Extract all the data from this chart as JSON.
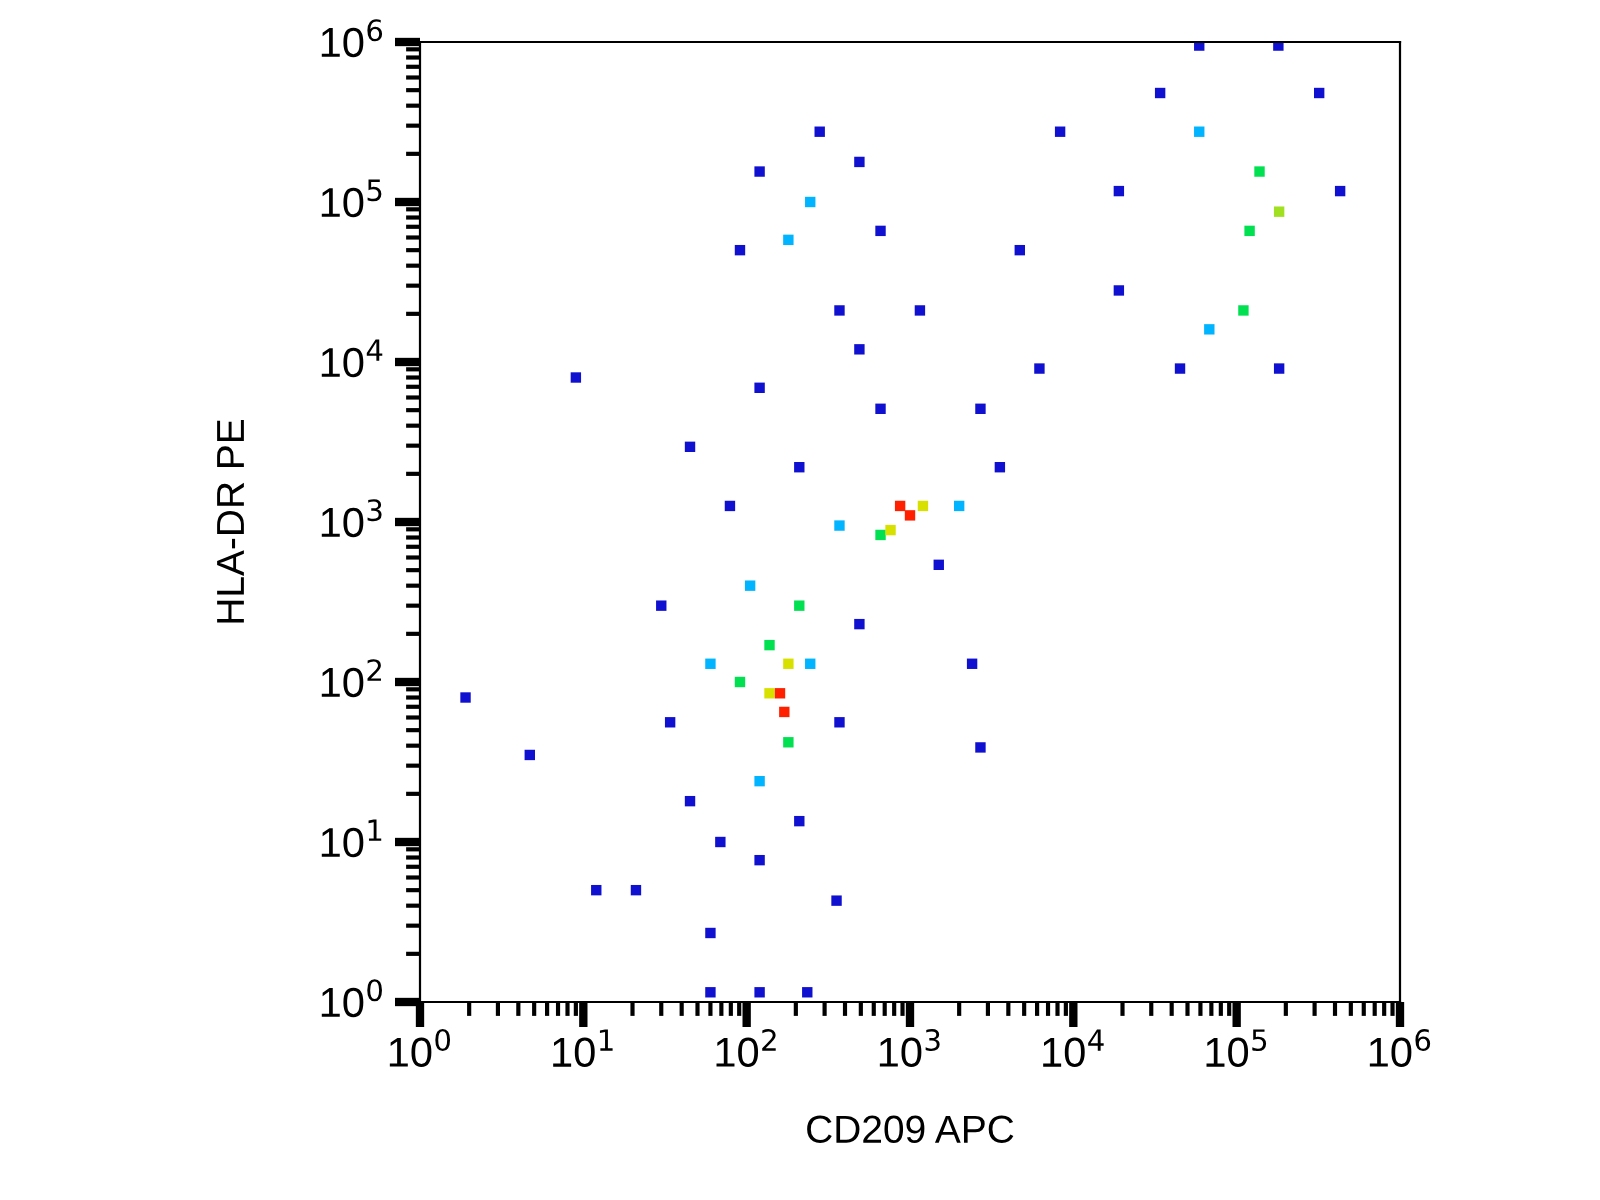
{
  "chart_data": {
    "type": "scatter",
    "xlabel": "CD209 APC",
    "ylabel": "HLA-DR PE",
    "log": "xy",
    "marker": "square",
    "grid": false,
    "xlim": [
      1,
      1000000
    ],
    "ylim": [
      1,
      1000000
    ],
    "xticks": [
      {
        "value": 1,
        "label": "10$^{0}$"
      },
      {
        "value": 10,
        "label": "10$^{1}$"
      },
      {
        "value": 100,
        "label": "10$^{2}$"
      },
      {
        "value": 1000,
        "label": "10$^{3}$"
      },
      {
        "value": 10000,
        "label": "10$^{4}$"
      },
      {
        "value": 100000,
        "label": "10$^{5}$"
      },
      {
        "value": 1000000,
        "label": "10$^{6}$"
      }
    ],
    "yticks": [
      {
        "value": 1,
        "label": "10$^{0}$"
      },
      {
        "value": 10,
        "label": "10$^{1}$"
      },
      {
        "value": 100,
        "label": "10$^{2}$"
      },
      {
        "value": 1000,
        "label": "10$^{3}$"
      },
      {
        "value": 10000,
        "label": "10$^{4}$"
      },
      {
        "value": 100000,
        "label": "10$^{5}$"
      },
      {
        "value": 1000000,
        "label": "10$^{6}$"
      }
    ],
    "x": [
      1.9,
      4.7,
      9,
      12,
      21,
      60,
      60,
      120,
      235,
      355,
      2400,
      2700,
      30,
      34,
      45,
      69,
      120,
      210,
      370,
      490,
      79,
      45,
      120,
      210,
      1500,
      3550,
      2700,
      660,
      6200,
      1150,
      370,
      490,
      60,
      120,
      245,
      105,
      370,
      2000,
      91,
      210,
      138,
      180,
      660,
      138,
      180,
      1200,
      760,
      160,
      170,
      1000,
      870,
      245,
      180,
      120,
      490,
      91,
      660,
      280,
      120000,
      138000,
      110000,
      182000,
      59000,
      68000,
      34000,
      320000,
      430000,
      45000,
      182000,
      19000,
      180000,
      8300,
      19000,
      4700,
      59000
    ],
    "values": [
      80,
      35,
      8000,
      5,
      5,
      2.7,
      1.15,
      1.15,
      1.15,
      4.3,
      130,
      39,
      300,
      56,
      18,
      10,
      7.7,
      13.5,
      56,
      230,
      1260,
      2950,
      6900,
      2200,
      540,
      2200,
      5100,
      5100,
      9100,
      21000,
      21000,
      12000,
      130,
      24,
      130,
      400,
      950,
      1260,
      100,
      300,
      170,
      42,
      830,
      85,
      130,
      1260,
      890,
      85,
      65,
      1100,
      1260,
      100000,
      58000,
      155000,
      178000,
      50000,
      66000,
      275000,
      66000,
      155000,
      21000,
      87000,
      275000,
      16000,
      480000,
      480000,
      117000,
      9100,
      9100,
      117000,
      950000,
      275000,
      28000,
      50000,
      950000
    ],
    "colors": [
      "#1010d0",
      "#1010d0",
      "#1010d0",
      "#1010d0",
      "#1010d0",
      "#1010d0",
      "#1010d0",
      "#1010d0",
      "#1010d0",
      "#1010d0",
      "#1010d0",
      "#1010d0",
      "#1010d0",
      "#1010d0",
      "#1010d0",
      "#1010d0",
      "#1010d0",
      "#1010d0",
      "#1010d0",
      "#1010d0",
      "#1010d0",
      "#1010d0",
      "#1010d0",
      "#1010d0",
      "#1010d0",
      "#1010d0",
      "#1010d0",
      "#1010d0",
      "#1010d0",
      "#1010d0",
      "#1010d0",
      "#1010d0",
      "#00b4ff",
      "#00b4ff",
      "#00b4ff",
      "#00b4ff",
      "#00b4ff",
      "#00b4ff",
      "#00e050",
      "#00e050",
      "#00e050",
      "#00e050",
      "#00e050",
      "#d8e000",
      "#d8e000",
      "#d8e000",
      "#d8e000",
      "#ff2000",
      "#ff2000",
      "#ff2000",
      "#ff2000",
      "#00b4ff",
      "#00b4ff",
      "#1010d0",
      "#1010d0",
      "#1010d0",
      "#1010d0",
      "#1010d0",
      "#00e050",
      "#00e050",
      "#00e050",
      "#a0e020",
      "#00b4ff",
      "#00b4ff",
      "#1010d0",
      "#1010d0",
      "#1010d0",
      "#1010d0",
      "#1010d0",
      "#1010d0",
      "#1010d0",
      "#1010d0",
      "#1010d0",
      "#1010d0",
      "#1010d0"
    ]
  }
}
